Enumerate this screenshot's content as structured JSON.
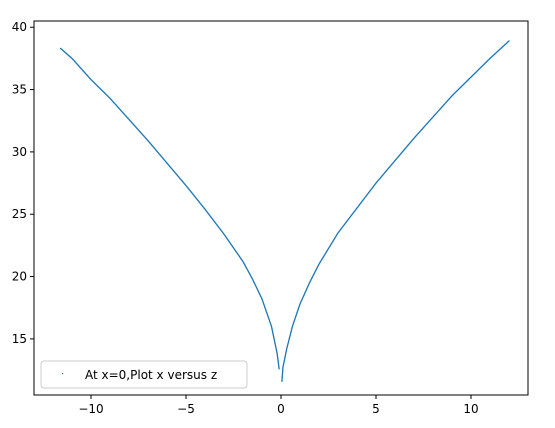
{
  "chart_data": {
    "type": "scatter",
    "title": "",
    "xlabel": "",
    "ylabel": "",
    "xlim": [
      -13,
      13
    ],
    "ylim": [
      10.5,
      40.5
    ],
    "xticks": [
      -10,
      -5,
      0,
      5,
      10
    ],
    "yticks": [
      15,
      20,
      25,
      30,
      35,
      40
    ],
    "xtick_labels": [
      "−10",
      "−5",
      "0",
      "5",
      "10"
    ],
    "ytick_labels": [
      "15",
      "20",
      "25",
      "30",
      "35",
      "40"
    ],
    "grid": false,
    "legend_position": "lower-left",
    "series": [
      {
        "name": "At x=0,Plot x versus z",
        "color": "#1f77b4",
        "marker": "pixel",
        "left_branch": [
          [
            -11.6,
            38.3
          ],
          [
            -11.0,
            37.5
          ],
          [
            -10.0,
            35.8
          ],
          [
            -9.0,
            34.3
          ],
          [
            -8.0,
            32.6
          ],
          [
            -7.0,
            30.9
          ],
          [
            -6.0,
            29.1
          ],
          [
            -5.0,
            27.3
          ],
          [
            -4.0,
            25.4
          ],
          [
            -3.0,
            23.4
          ],
          [
            -2.0,
            21.2
          ],
          [
            -1.5,
            19.8
          ],
          [
            -1.0,
            18.2
          ],
          [
            -0.5,
            16.0
          ],
          [
            -0.2,
            13.8
          ],
          [
            -0.1,
            12.6
          ]
        ],
        "right_branch": [
          [
            0.05,
            11.6
          ],
          [
            0.1,
            12.7
          ],
          [
            0.3,
            14.2
          ],
          [
            0.6,
            16.0
          ],
          [
            1.0,
            17.8
          ],
          [
            1.5,
            19.5
          ],
          [
            2.0,
            21.0
          ],
          [
            3.0,
            23.5
          ],
          [
            4.0,
            25.5
          ],
          [
            5.0,
            27.5
          ],
          [
            6.0,
            29.3
          ],
          [
            7.0,
            31.1
          ],
          [
            8.0,
            32.8
          ],
          [
            9.0,
            34.5
          ],
          [
            10.0,
            36.0
          ],
          [
            11.0,
            37.5
          ],
          [
            12.0,
            38.9
          ]
        ]
      }
    ]
  }
}
